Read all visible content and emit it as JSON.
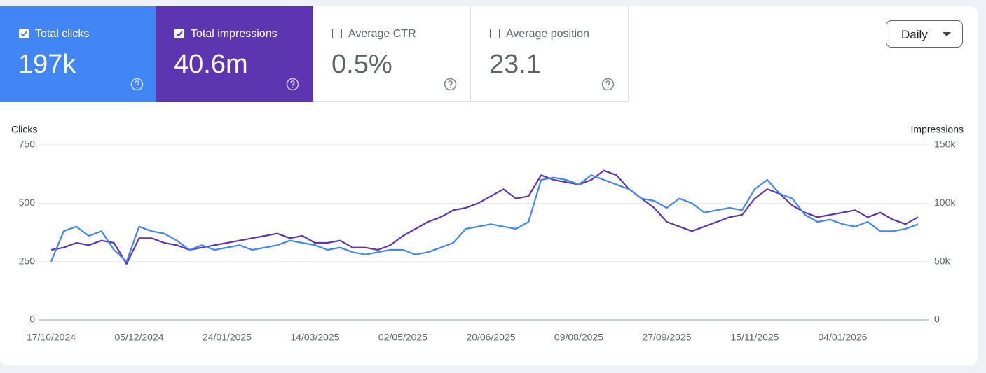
{
  "metrics": [
    {
      "label": "Total clicks",
      "value": "197k",
      "checked": true,
      "color": "#4285f4"
    },
    {
      "label": "Total impressions",
      "value": "40.6m",
      "checked": true,
      "color": "#5e35b1"
    },
    {
      "label": "Average CTR",
      "value": "0.5%",
      "checked": false,
      "color": "#00897b"
    },
    {
      "label": "Average position",
      "value": "23.1",
      "checked": false,
      "color": "#e8710a"
    }
  ],
  "period": "Daily",
  "chart_data": {
    "type": "line",
    "y_label": "Clicks",
    "y2_label": "Impressions",
    "categories": [
      "17/10/2024",
      null,
      null,
      null,
      null,
      null,
      null,
      "05/12/2024",
      null,
      null,
      null,
      null,
      null,
      null,
      "24/01/2025",
      null,
      null,
      null,
      null,
      null,
      null,
      "14/03/2025",
      null,
      null,
      null,
      null,
      null,
      null,
      "02/05/2025",
      null,
      null,
      null,
      null,
      null,
      null,
      "20/06/2025",
      null,
      null,
      null,
      null,
      null,
      null,
      "09/08/2025",
      null,
      null,
      null,
      null,
      null,
      null,
      "27/09/2025",
      null,
      null,
      null,
      null,
      null,
      null,
      "15/11/2025",
      null,
      null,
      null,
      null,
      null,
      null,
      "04/01/2026",
      null,
      null,
      null,
      null,
      null,
      null
    ],
    "series": [
      {
        "name": "Clicks",
        "color": "#4285f4",
        "values": [
          250,
          380,
          400,
          360,
          380,
          300,
          250,
          400,
          380,
          370,
          340,
          300,
          320,
          300,
          310,
          320,
          300,
          310,
          320,
          340,
          330,
          320,
          300,
          310,
          290,
          280,
          290,
          300,
          300,
          280,
          290,
          310,
          330,
          390,
          400,
          410,
          400,
          390,
          420,
          600,
          610,
          600,
          580,
          620,
          600,
          580,
          560,
          520,
          510,
          480,
          520,
          500,
          460,
          470,
          480,
          470,
          560,
          600,
          540,
          520,
          450,
          420,
          430,
          410,
          400,
          420,
          380,
          380,
          390,
          410
        ]
      },
      {
        "name": "Impressions",
        "color": "#5e35b1",
        "axis": "y2",
        "values": [
          60000,
          62000,
          66000,
          64000,
          68000,
          66000,
          48000,
          70000,
          70000,
          66000,
          64000,
          60000,
          62000,
          64000,
          66000,
          68000,
          70000,
          72000,
          74000,
          70000,
          72000,
          66000,
          66000,
          68000,
          62000,
          62000,
          60000,
          64000,
          72000,
          78000,
          84000,
          88000,
          94000,
          96000,
          100000,
          106000,
          112000,
          104000,
          106000,
          124000,
          120000,
          118000,
          116000,
          120000,
          128000,
          124000,
          112000,
          104000,
          96000,
          84000,
          80000,
          76000,
          80000,
          84000,
          88000,
          90000,
          104000,
          112000,
          108000,
          98000,
          92000,
          88000,
          90000,
          92000,
          94000,
          88000,
          92000,
          86000,
          82000,
          88000
        ]
      }
    ],
    "ylim": [
      0,
      750
    ],
    "yticks": [
      0,
      250,
      500,
      750
    ],
    "y2lim": [
      0,
      150000
    ],
    "y2ticks": [
      0,
      {
        "value": 50000,
        "label": "50k"
      },
      {
        "value": 100000,
        "label": "100k"
      },
      {
        "value": 150000,
        "label": "150k"
      }
    ],
    "grid": true
  }
}
